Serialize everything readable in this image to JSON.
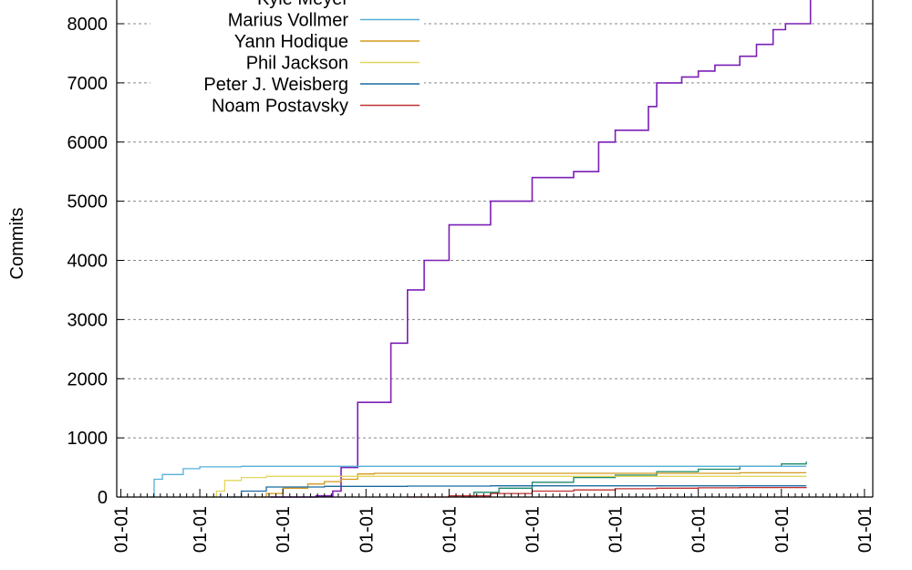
{
  "chart_data": {
    "type": "line",
    "ylabel": "Commits",
    "ylim": [
      0,
      8400
    ],
    "yticks": [
      0,
      1000,
      2000,
      3000,
      4000,
      5000,
      6000,
      7000,
      8000
    ],
    "xlim": [
      2001.5,
      2010.6
    ],
    "xticks": [
      2001.55,
      2002.5,
      2003.5,
      2004.5,
      2005.5,
      2006.5,
      2007.5,
      2008.5,
      2009.5,
      2010.5
    ],
    "xtick_labels": [
      "01-01",
      "01-01",
      "01-01",
      "01-01",
      "01-01",
      "01-01",
      "01-01",
      "01-01",
      "01-01",
      "01-01"
    ],
    "grid": true,
    "legend_position": "top-left",
    "series": [
      {
        "name": "",
        "color": "#7b1fb5",
        "x": [
          2003.35,
          2003.6,
          2003.9,
          2004.1,
          2004.2,
          2004.4,
          2004.8,
          2005.0,
          2005.2,
          2005.5,
          2006.0,
          2006.5,
          2007.0,
          2007.3,
          2007.5,
          2007.9,
          2008.0,
          2008.3,
          2008.5,
          2008.7,
          2009.0,
          2009.2,
          2009.4,
          2009.55,
          2009.85
        ],
        "y": [
          0,
          0,
          20,
          100,
          500,
          1600,
          2600,
          3500,
          4000,
          4600,
          5000,
          5400,
          5500,
          6000,
          6200,
          6600,
          7000,
          7100,
          7200,
          7300,
          7450,
          7650,
          7900,
          8000,
          8400
        ]
      },
      {
        "name": "Kyle Meyer",
        "color": "#1a8a6a",
        "x": [
          2005.65,
          2005.8,
          2006.1,
          2006.5,
          2007.0,
          2007.5,
          2008.0,
          2008.5,
          2009.0,
          2009.5,
          2009.8
        ],
        "y": [
          0,
          80,
          150,
          250,
          330,
          370,
          430,
          470,
          520,
          560,
          600
        ]
      },
      {
        "name": "Marius Vollmer",
        "color": "#56b0d8",
        "x": [
          2001.9,
          2001.95,
          2002.05,
          2002.3,
          2002.5,
          2003.0,
          2004.0,
          2005.0,
          2006.0,
          2007.0,
          2008.0,
          2009.0,
          2009.8
        ],
        "y": [
          0,
          300,
          380,
          480,
          510,
          520,
          520,
          520,
          520,
          520,
          520,
          520,
          520
        ]
      },
      {
        "name": "Yann Hodique",
        "color": "#d49a1e",
        "x": [
          2003.15,
          2003.3,
          2003.5,
          2003.8,
          2004.0,
          2004.2,
          2004.4,
          2004.6,
          2005.0,
          2006.0,
          2007.0,
          2008.0,
          2009.0,
          2009.8
        ],
        "y": [
          0,
          60,
          150,
          220,
          260,
          300,
          390,
          400,
          400,
          400,
          400,
          400,
          410,
          410
        ]
      },
      {
        "name": "Phil Jackson",
        "color": "#e3d65c",
        "x": [
          2002.55,
          2002.7,
          2002.8,
          2003.0,
          2003.3,
          2004.0,
          2005.0,
          2006.0,
          2007.0,
          2008.0,
          2009.0,
          2009.8
        ],
        "y": [
          0,
          100,
          280,
          330,
          350,
          350,
          350,
          350,
          350,
          350,
          350,
          350
        ]
      },
      {
        "name": "Peter J. Weisberg",
        "color": "#1a6aa0",
        "x": [
          2002.85,
          2003.0,
          2003.3,
          2004.0,
          2005.0,
          2006.0,
          2007.0,
          2008.0,
          2009.0,
          2009.8
        ],
        "y": [
          0,
          100,
          170,
          180,
          185,
          190,
          190,
          190,
          190,
          190
        ]
      },
      {
        "name": "Noam Postavsky",
        "color": "#c43030",
        "x": [
          2005.0,
          2005.5,
          2006.0,
          2006.5,
          2007.0,
          2007.5,
          2008.0,
          2008.5,
          2009.0,
          2009.8
        ],
        "y": [
          0,
          20,
          60,
          100,
          120,
          140,
          150,
          155,
          160,
          165
        ]
      }
    ]
  }
}
